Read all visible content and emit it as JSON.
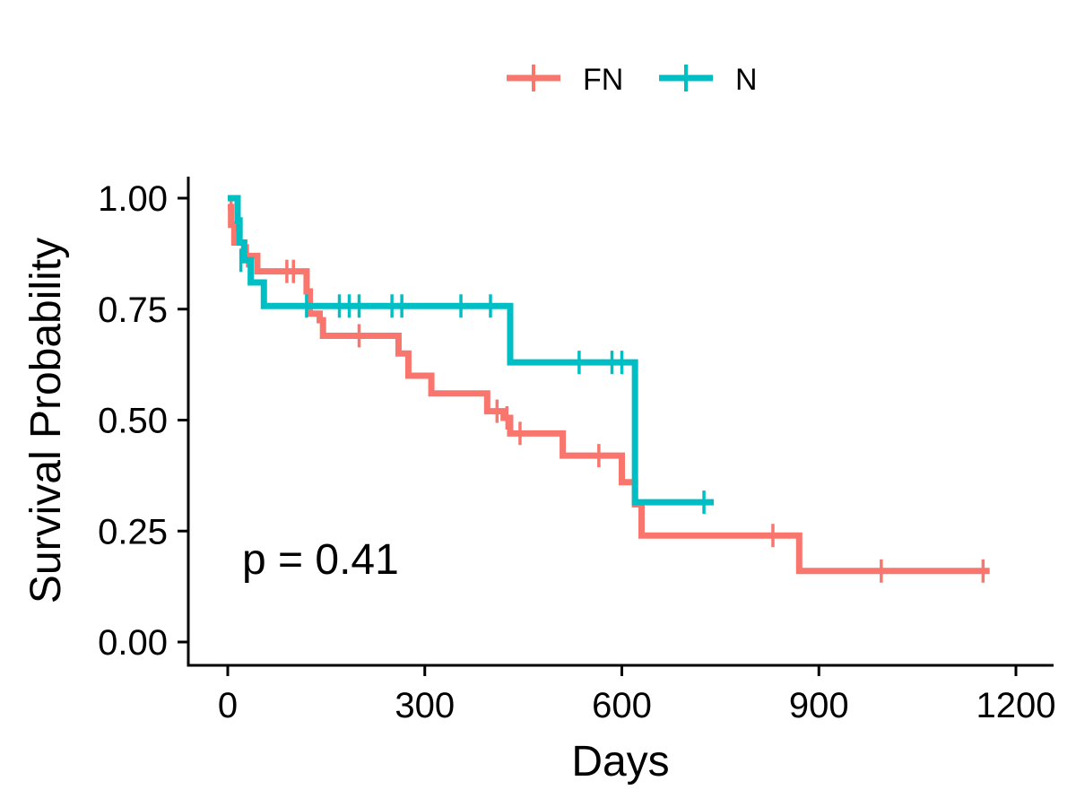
{
  "chart_data": {
    "type": "line",
    "title": "",
    "xlabel": "Days",
    "ylabel": "Survival Probability",
    "xlim": [
      -50,
      1250
    ],
    "ylim": [
      -0.05,
      1.05
    ],
    "x_ticks": [
      0,
      300,
      600,
      900,
      1200
    ],
    "x_tick_labels": [
      "0",
      "300",
      "600",
      "900",
      "1200"
    ],
    "y_ticks": [
      0,
      0.25,
      0.5,
      0.75,
      1.0
    ],
    "y_tick_labels": [
      "0.00",
      "0.25",
      "0.50",
      "0.75",
      "1.00"
    ],
    "grid": false,
    "legend_position": "top",
    "annotation": "p = 0.41",
    "series": [
      {
        "name": "FN",
        "color": "#F8766D",
        "steps": [
          [
            0,
            0.98
          ],
          [
            5,
            0.94
          ],
          [
            10,
            0.9
          ],
          [
            25,
            0.87
          ],
          [
            45,
            0.835
          ],
          [
            120,
            0.79
          ],
          [
            125,
            0.74
          ],
          [
            140,
            0.725
          ],
          [
            145,
            0.69
          ],
          [
            260,
            0.65
          ],
          [
            275,
            0.6
          ],
          [
            310,
            0.56
          ],
          [
            395,
            0.52
          ],
          [
            420,
            0.505
          ],
          [
            430,
            0.47
          ],
          [
            510,
            0.42
          ],
          [
            600,
            0.36
          ],
          [
            620,
            0.31
          ],
          [
            630,
            0.24
          ],
          [
            870,
            0.16
          ],
          [
            1160,
            0.16
          ]
        ],
        "censors": [
          [
            5,
            0.98
          ],
          [
            30,
            0.87
          ],
          [
            90,
            0.835
          ],
          [
            100,
            0.835
          ],
          [
            200,
            0.69
          ],
          [
            410,
            0.52
          ],
          [
            425,
            0.505
          ],
          [
            445,
            0.47
          ],
          [
            565,
            0.42
          ],
          [
            830,
            0.24
          ],
          [
            995,
            0.16
          ],
          [
            1150,
            0.16
          ]
        ]
      },
      {
        "name": "N",
        "color": "#00BFC4",
        "steps": [
          [
            0,
            1.0
          ],
          [
            15,
            0.95
          ],
          [
            18,
            0.9
          ],
          [
            25,
            0.86
          ],
          [
            35,
            0.845
          ],
          [
            35,
            0.81
          ],
          [
            55,
            0.757
          ],
          [
            430,
            0.63
          ],
          [
            620,
            0.315
          ],
          [
            740,
            0.315
          ]
        ],
        "censors": [
          [
            15,
            0.95
          ],
          [
            20,
            0.86
          ],
          [
            120,
            0.757
          ],
          [
            170,
            0.757
          ],
          [
            185,
            0.757
          ],
          [
            200,
            0.757
          ],
          [
            250,
            0.757
          ],
          [
            265,
            0.757
          ],
          [
            355,
            0.757
          ],
          [
            400,
            0.757
          ],
          [
            535,
            0.63
          ],
          [
            585,
            0.63
          ],
          [
            600,
            0.63
          ],
          [
            725,
            0.315
          ]
        ]
      }
    ]
  }
}
